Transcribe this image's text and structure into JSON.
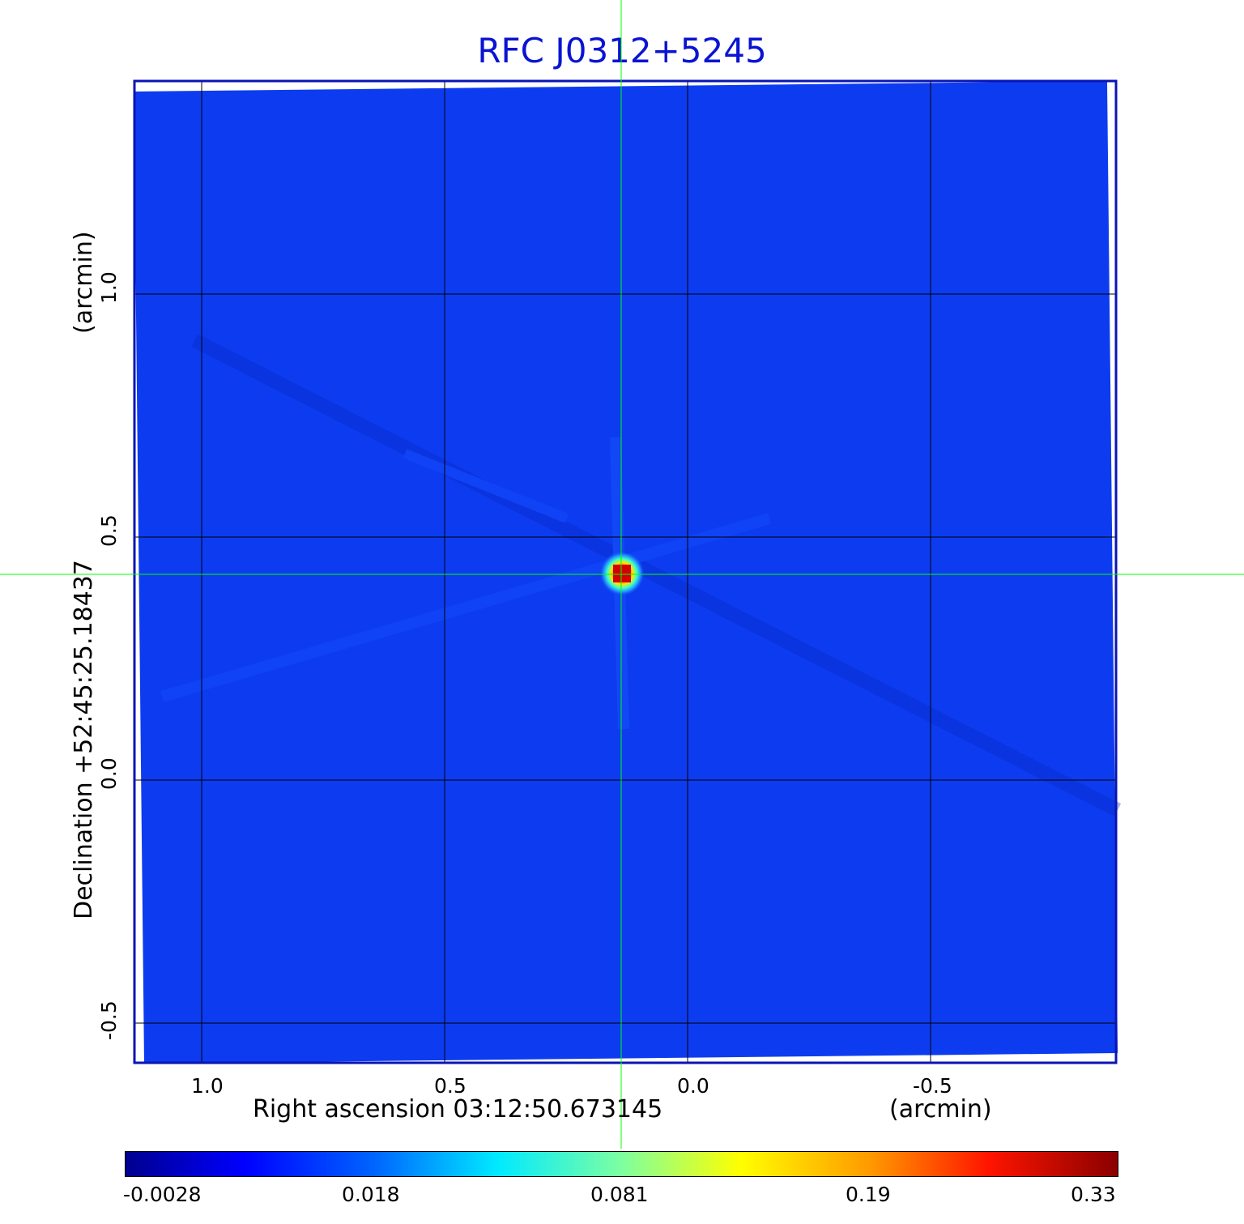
{
  "title": "RFC J0312+5245",
  "axes": {
    "x_ticks": [
      "1.0",
      "0.5",
      "0.0",
      "-0.5"
    ],
    "y_ticks": [
      "1.0",
      "0.5",
      "0.0",
      "-0.5"
    ],
    "x_label": "Right ascension  03:12:50.673145",
    "x_unit": "(arcmin)",
    "y_label": "Declination  +52:45:25.18437",
    "y_unit": "(arcmin)"
  },
  "colorbar": {
    "ticks": [
      "-0.0028",
      "0.018",
      "0.081",
      "0.19",
      "0.33"
    ]
  },
  "colors": {
    "title": "#0a14d2",
    "frame": "#0a14b4",
    "crosshair": "#00ff00",
    "background_map": "#0d3cf0"
  }
}
